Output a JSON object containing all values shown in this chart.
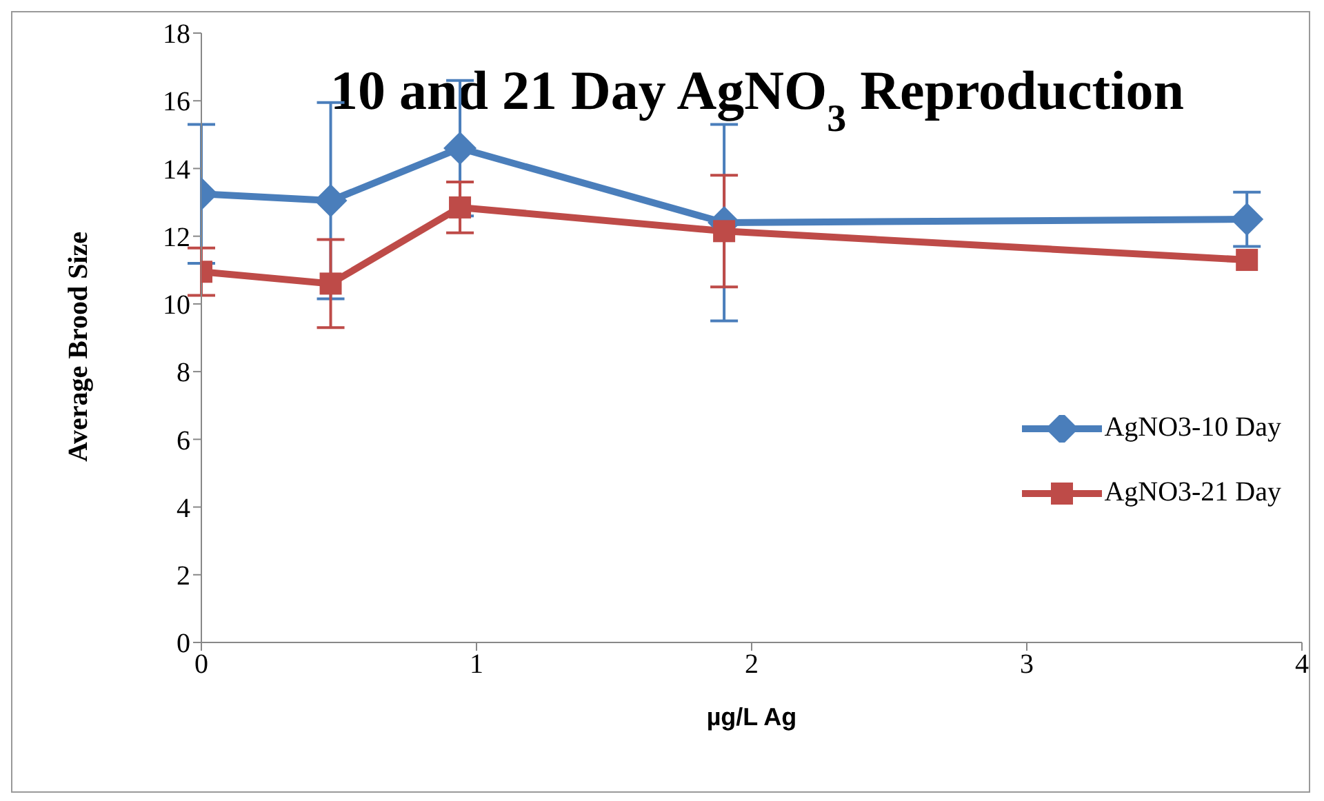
{
  "chart_data": {
    "type": "line",
    "title": "10 and 21 Day AgNO$_{3}$ Reproduction",
    "xlabel": "µg/L Ag",
    "ylabel": "Average Brood Size",
    "x": [
      0,
      0.47,
      0.94,
      1.9,
      3.8
    ],
    "xlim": [
      0,
      4
    ],
    "xticks": [
      0,
      1,
      2,
      3,
      4
    ],
    "ylim": [
      0,
      18
    ],
    "yticks": [
      0,
      2,
      4,
      6,
      8,
      10,
      12,
      14,
      16,
      18
    ],
    "grid": false,
    "legend": "right",
    "series": [
      {
        "name": "AgNO3-10 Day",
        "color": "#4a7ebb",
        "marker": "diamond",
        "values": [
          13.25,
          13.05,
          14.6,
          12.4,
          12.5
        ],
        "errors": [
          2.05,
          2.9,
          2.0,
          2.9,
          0.8
        ]
      },
      {
        "name": "AgNO3-21 Day",
        "color": "#be4b48",
        "marker": "square",
        "values": [
          10.95,
          10.6,
          12.85,
          12.15,
          11.3
        ],
        "errors": [
          0.7,
          1.3,
          0.75,
          1.65,
          null
        ]
      }
    ]
  }
}
